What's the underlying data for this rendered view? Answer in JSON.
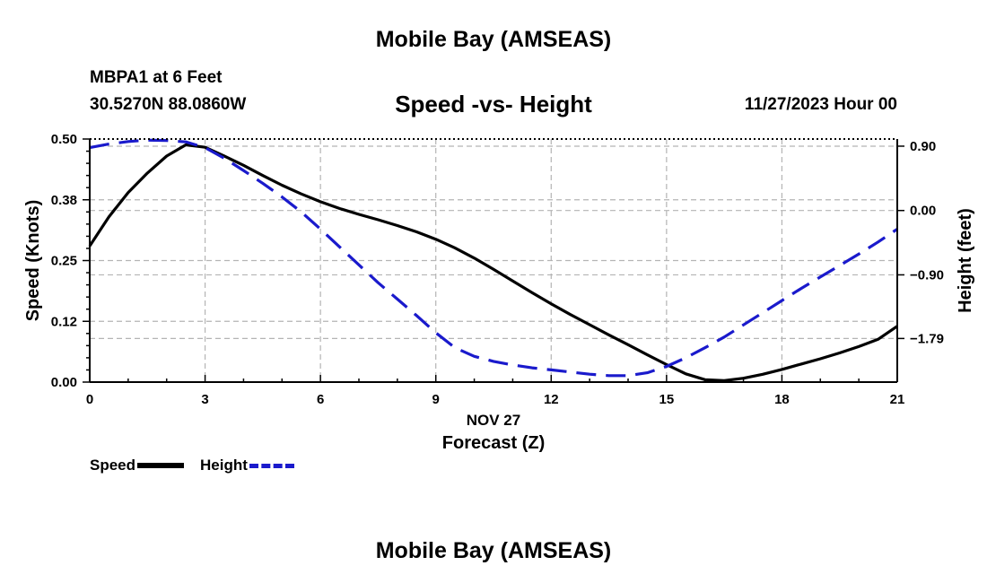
{
  "header": {
    "title": "Mobile Bay (AMSEAS)",
    "station": "MBPA1 at 6 Feet",
    "coords": "30.5270N  88.0860W",
    "subtitle": "Speed -vs- Height",
    "datetime": "11/27/2023 Hour 00"
  },
  "footer": {
    "title": "Mobile Bay (AMSEAS)"
  },
  "legend": {
    "speed": "Speed",
    "height": "Height"
  },
  "colors": {
    "speed": "#000000",
    "height": "#1a1acc",
    "grid": "#b4b4b4"
  },
  "chart_data": {
    "type": "line",
    "title": "Speed -vs- Height",
    "xlabel": "Forecast (Z)",
    "xlabel_date": "NOV 27",
    "ylabel": "Speed (Knots)",
    "y2label": "Height (feet)",
    "xlim": [
      0,
      21
    ],
    "ylim": [
      0,
      0.5
    ],
    "y2lim": [
      -2.4,
      1.0
    ],
    "xticks": [
      0,
      3,
      6,
      9,
      12,
      15,
      18,
      21
    ],
    "xtick_labels": [
      "0",
      "3",
      "6",
      "9",
      "12",
      "15",
      "18",
      "21"
    ],
    "yticks": [
      0.0,
      0.125,
      0.25,
      0.375,
      0.5
    ],
    "ytick_labels": [
      "0.00",
      "0.12",
      "0.25",
      "0.38",
      "0.50"
    ],
    "y2ticks": [
      0.9,
      0.0,
      -0.9,
      -1.79
    ],
    "y2tick_labels": [
      "0.90",
      "0.00",
      "−0.90",
      "−1.79"
    ],
    "grid": true,
    "series": [
      {
        "name": "Speed",
        "axis": "left",
        "style": "solid",
        "x": [
          0,
          0.5,
          1,
          1.5,
          2,
          2.5,
          3,
          3.5,
          4,
          4.5,
          5,
          5.5,
          6,
          6.5,
          7,
          7.5,
          8,
          8.5,
          9,
          9.5,
          10,
          10.5,
          11,
          11.5,
          12,
          12.5,
          13,
          13.5,
          14,
          14.5,
          15,
          15.5,
          16,
          16.5,
          17,
          17.5,
          18,
          18.5,
          19,
          19.5,
          20,
          20.5,
          21
        ],
        "values": [
          0.28,
          0.34,
          0.39,
          0.43,
          0.465,
          0.488,
          0.483,
          0.465,
          0.446,
          0.425,
          0.405,
          0.387,
          0.371,
          0.357,
          0.345,
          0.334,
          0.322,
          0.309,
          0.294,
          0.276,
          0.255,
          0.232,
          0.208,
          0.184,
          0.161,
          0.139,
          0.118,
          0.097,
          0.077,
          0.056,
          0.036,
          0.017,
          0.005,
          0.003,
          0.008,
          0.016,
          0.026,
          0.037,
          0.048,
          0.06,
          0.073,
          0.088,
          0.115
        ]
      },
      {
        "name": "Height",
        "axis": "right",
        "style": "dashed",
        "x": [
          0,
          0.5,
          1,
          1.5,
          2,
          2.5,
          3,
          3.5,
          4,
          4.5,
          5,
          5.5,
          6,
          6.5,
          7,
          7.5,
          8,
          8.5,
          9,
          9.5,
          10,
          10.5,
          11,
          11.5,
          12,
          12.5,
          13,
          13.5,
          14,
          14.5,
          15,
          15.5,
          16,
          16.5,
          17,
          17.5,
          18,
          18.5,
          19,
          19.5,
          20,
          20.5,
          21
        ],
        "values": [
          0.88,
          0.93,
          0.965,
          0.985,
          0.98,
          0.96,
          0.88,
          0.73,
          0.56,
          0.38,
          0.19,
          -0.02,
          -0.26,
          -0.51,
          -0.76,
          -1.01,
          -1.24,
          -1.47,
          -1.71,
          -1.92,
          -2.04,
          -2.11,
          -2.16,
          -2.2,
          -2.23,
          -2.26,
          -2.29,
          -2.31,
          -2.31,
          -2.27,
          -2.18,
          -2.06,
          -1.92,
          -1.77,
          -1.6,
          -1.43,
          -1.26,
          -1.09,
          -0.93,
          -0.77,
          -0.61,
          -0.44,
          -0.26
        ]
      }
    ]
  }
}
